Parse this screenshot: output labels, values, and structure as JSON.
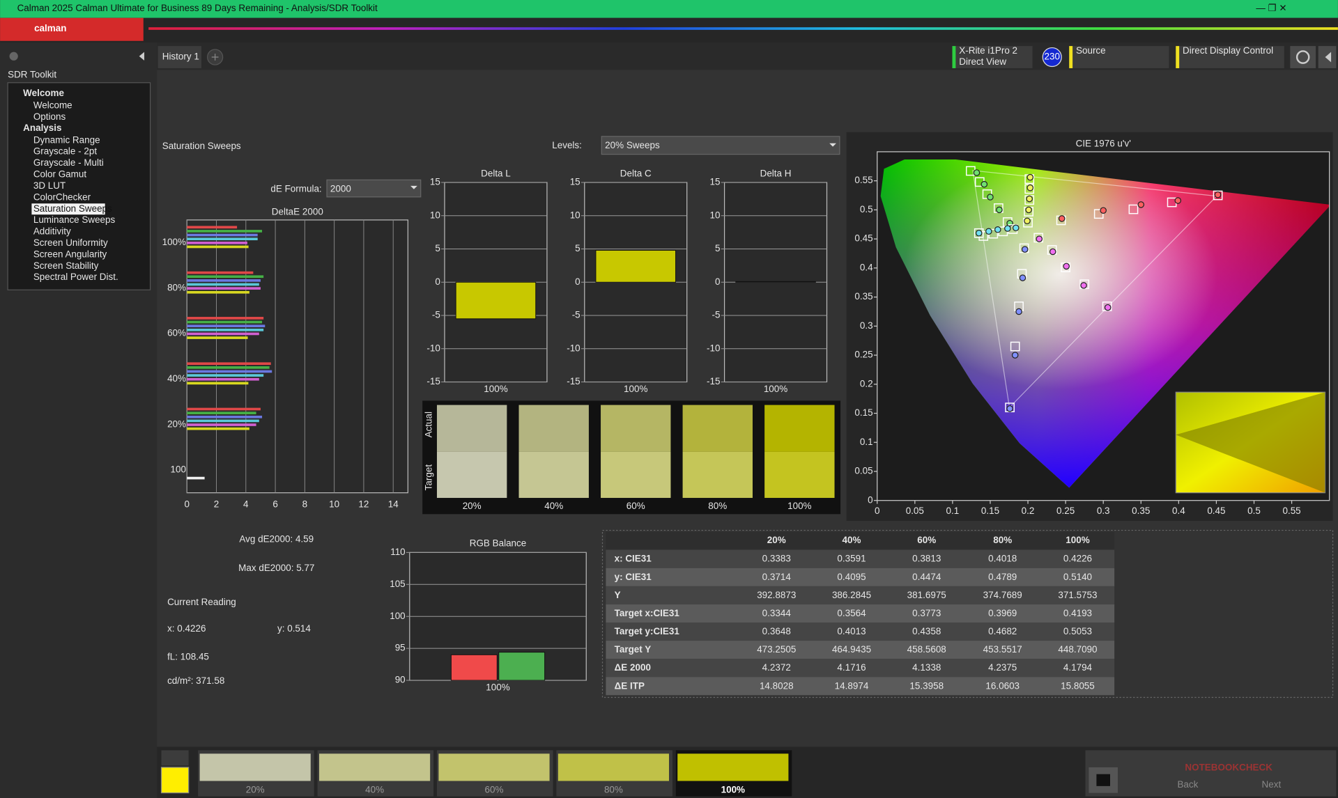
{
  "window": {
    "title": "Calman 2025 Calman Ultimate for Business 89 Days Remaining  - Analysis/SDR Toolkit",
    "logo": "calman"
  },
  "sidebar": {
    "title": "SDR Toolkit",
    "groups": [
      {
        "label": "Welcome",
        "items": [
          "Welcome",
          "Options"
        ]
      },
      {
        "label": "Analysis",
        "items": [
          "Dynamic Range",
          "Grayscale - 2pt",
          "Grayscale - Multi",
          "Color Gamut",
          "3D LUT",
          "ColorChecker",
          "Saturation Sweeps",
          "Luminance Sweeps",
          "Additivity",
          "Screen Uniformity",
          "Screen Angularity",
          "Screen Stability",
          "Spectral Power Dist."
        ],
        "selected": 6
      }
    ]
  },
  "tabs": [
    "History 1"
  ],
  "toolbar": {
    "meter": "X-Rite i1Pro 2",
    "meter_mode": "Direct View",
    "badge": "230",
    "source": "Source",
    "display": "Direct Display Control"
  },
  "panel": {
    "title": "Saturation Sweeps",
    "levels_label": "Levels:",
    "levels_value": "20% Sweeps",
    "formula_label": "dE Formula:",
    "formula_value": "2000"
  },
  "chart_data": [
    {
      "type": "hbar",
      "title": "DeltaE 2000",
      "categories": [
        "100%",
        "80%",
        "60%",
        "40%",
        "20%",
        "100"
      ],
      "xlim": [
        0,
        15
      ],
      "xticks": [
        0,
        2,
        4,
        6,
        8,
        10,
        12,
        14
      ],
      "grid": true,
      "series": [
        {
          "color": "#e04848",
          "values": [
            3.4,
            4.5,
            5.2,
            5.7,
            5.0,
            null
          ]
        },
        {
          "color": "#46b046",
          "values": [
            5.1,
            5.2,
            5.1,
            5.6,
            4.7,
            null
          ]
        },
        {
          "color": "#6a78e0",
          "values": [
            4.8,
            5.0,
            5.3,
            5.77,
            5.1,
            null
          ]
        },
        {
          "color": "#5ac8d8",
          "values": [
            4.8,
            4.9,
            5.2,
            5.2,
            4.9,
            null
          ]
        },
        {
          "color": "#d060d0",
          "values": [
            4.1,
            5.0,
            4.9,
            4.9,
            4.7,
            null
          ]
        },
        {
          "color": "#d8d820",
          "values": [
            4.18,
            4.24,
            4.13,
            4.17,
            4.24,
            null
          ]
        },
        {
          "color": "#f0f0f0",
          "values": [
            null,
            null,
            null,
            null,
            null,
            1.2
          ]
        }
      ]
    },
    {
      "type": "bar",
      "title": "Delta L",
      "categories": [
        "100%"
      ],
      "values": [
        -5.5
      ],
      "color": "#c8c800",
      "ylim": [
        -15,
        15
      ],
      "yticks": [
        -15,
        -10,
        -5,
        0,
        5,
        10,
        15
      ],
      "grid": true
    },
    {
      "type": "bar",
      "title": "Delta C",
      "categories": [
        "100%"
      ],
      "values": [
        4.8
      ],
      "color": "#c8c800",
      "ylim": [
        -15,
        15
      ],
      "yticks": [
        -15,
        -10,
        -5,
        0,
        5,
        10,
        15
      ],
      "grid": true
    },
    {
      "type": "bar",
      "title": "Delta H",
      "categories": [
        "100%"
      ],
      "values": [
        0.1
      ],
      "color": "#c8c800",
      "ylim": [
        -15,
        15
      ],
      "yticks": [
        -15,
        -10,
        -5,
        0,
        5,
        10,
        15
      ],
      "grid": true
    },
    {
      "type": "bar",
      "title": "RGB Balance",
      "categories": [
        "100%"
      ],
      "ylim": [
        90,
        110
      ],
      "yticks": [
        90,
        95,
        100,
        105,
        110
      ],
      "grid": true,
      "series": [
        {
          "color": "#f04a4a",
          "values": [
            94
          ]
        },
        {
          "color": "#4caf50",
          "values": [
            94.4
          ]
        }
      ]
    },
    {
      "type": "scatter",
      "title": "CIE 1976 u'v'",
      "xlim": [
        0,
        0.6
      ],
      "ylim": [
        0,
        0.6
      ],
      "xticks": [
        0,
        0.05,
        0.1,
        0.15,
        0.2,
        0.25,
        0.3,
        0.35,
        0.4,
        0.45,
        0.5,
        0.55
      ],
      "yticks": [
        0,
        0.05,
        0.1,
        0.15,
        0.2,
        0.25,
        0.3,
        0.35,
        0.4,
        0.45,
        0.5,
        0.55
      ],
      "series": [
        {
          "marker": "square",
          "color": "#ffffff",
          "x": [
            0.244,
            0.294,
            0.34,
            0.391,
            0.452
          ],
          "y": [
            0.482,
            0.493,
            0.501,
            0.513,
            0.525
          ]
        },
        {
          "marker": "circle",
          "color": "#ff6060",
          "x": [
            0.245,
            0.3,
            0.35,
            0.399,
            0.452
          ],
          "y": [
            0.485,
            0.499,
            0.509,
            0.516,
            0.526
          ]
        },
        {
          "marker": "square",
          "color": "#ffffff",
          "x": [
            0.173,
            0.161,
            0.146,
            0.136,
            0.124
          ],
          "y": [
            0.479,
            0.503,
            0.527,
            0.548,
            0.567
          ]
        },
        {
          "marker": "circle",
          "color": "#70e070",
          "x": [
            0.176,
            0.162,
            0.15,
            0.142,
            0.132
          ],
          "y": [
            0.477,
            0.5,
            0.522,
            0.544,
            0.564
          ]
        },
        {
          "marker": "square",
          "color": "#ffffff",
          "x": [
            0.195,
            0.192,
            0.188,
            0.183,
            0.176
          ],
          "y": [
            0.434,
            0.39,
            0.334,
            0.265,
            0.16
          ]
        },
        {
          "marker": "circle",
          "color": "#8090ff",
          "x": [
            0.196,
            0.193,
            0.188,
            0.183,
            0.176
          ],
          "y": [
            0.432,
            0.383,
            0.325,
            0.25,
            0.158
          ]
        },
        {
          "marker": "square",
          "color": "#ffffff",
          "x": [
            0.18,
            0.167,
            0.154,
            0.141,
            0.135
          ],
          "y": [
            0.467,
            0.463,
            0.459,
            0.455,
            0.46
          ]
        },
        {
          "marker": "circle",
          "color": "#70e0f0",
          "x": [
            0.184,
            0.173,
            0.16,
            0.148,
            0.135
          ],
          "y": [
            0.469,
            0.468,
            0.466,
            0.463,
            0.46
          ]
        },
        {
          "marker": "square",
          "color": "#ffffff",
          "x": [
            0.214,
            0.232,
            0.25,
            0.275,
            0.305
          ],
          "y": [
            0.452,
            0.431,
            0.401,
            0.372,
            0.334
          ]
        },
        {
          "marker": "circle",
          "color": "#f070f0",
          "x": [
            0.215,
            0.233,
            0.251,
            0.274,
            0.306
          ],
          "y": [
            0.45,
            0.428,
            0.403,
            0.37,
            0.332
          ]
        },
        {
          "marker": "square",
          "color": "#ffffff",
          "x": [
            0.2,
            0.201,
            0.202,
            0.202,
            0.202
          ],
          "y": [
            0.478,
            0.497,
            0.517,
            0.536,
            0.553
          ]
        },
        {
          "marker": "circle",
          "color": "#f0f060",
          "x": [
            0.199,
            0.201,
            0.202,
            0.203,
            0.203
          ],
          "y": [
            0.481,
            0.5,
            0.519,
            0.538,
            0.556
          ]
        }
      ]
    }
  ],
  "swatches": {
    "actual_label": "Actual",
    "target_label": "Target",
    "levels": [
      {
        "label": "20%",
        "actual": "#b6b799",
        "target": "#c6c7ae"
      },
      {
        "label": "40%",
        "actual": "#b3b480",
        "target": "#c5c693"
      },
      {
        "label": "60%",
        "actual": "#b5b664",
        "target": "#c7c87a"
      },
      {
        "label": "80%",
        "actual": "#b3b33c",
        "target": "#c5c658"
      },
      {
        "label": "100%",
        "actual": "#b4b400",
        "target": "#c4c420"
      }
    ]
  },
  "stats": {
    "avg": "Avg dE2000: 4.59",
    "max": "Max dE2000: 5.77",
    "reading_title": "Current Reading",
    "x": "x: 0.4226",
    "y": "y: 0.514",
    "fl": "fL: 108.45",
    "cdm2": "cd/m²: 371.58"
  },
  "table": {
    "columns": [
      "20%",
      "40%",
      "60%",
      "80%",
      "100%"
    ],
    "rows": [
      {
        "label": "x: CIE31",
        "cells": [
          "0.3383",
          "0.3591",
          "0.3813",
          "0.4018",
          "0.4226"
        ]
      },
      {
        "label": "y: CIE31",
        "cells": [
          "0.3714",
          "0.4095",
          "0.4474",
          "0.4789",
          "0.5140"
        ]
      },
      {
        "label": "Y",
        "cells": [
          "392.8873",
          "386.2845",
          "381.6975",
          "374.7689",
          "371.5753"
        ]
      },
      {
        "label": "Target x:CIE31",
        "cells": [
          "0.3344",
          "0.3564",
          "0.3773",
          "0.3969",
          "0.4193"
        ]
      },
      {
        "label": "Target y:CIE31",
        "cells": [
          "0.3648",
          "0.4013",
          "0.4358",
          "0.4682",
          "0.5053"
        ]
      },
      {
        "label": "Target Y",
        "cells": [
          "473.2505",
          "464.9435",
          "458.5608",
          "453.5517",
          "448.7090"
        ]
      },
      {
        "label": "ΔE 2000",
        "cells": [
          "4.2372",
          "4.1716",
          "4.1338",
          "4.2375",
          "4.1794"
        ]
      },
      {
        "label": "ΔE ITP",
        "cells": [
          "14.8028",
          "14.8974",
          "15.3958",
          "16.0603",
          "15.8055"
        ]
      }
    ]
  },
  "footer": {
    "levels": [
      {
        "label": "20%",
        "color": "#c4c5a9"
      },
      {
        "label": "40%",
        "color": "#c3c48c"
      },
      {
        "label": "60%",
        "color": "#c2c36c"
      },
      {
        "label": "80%",
        "color": "#c0c148"
      },
      {
        "label": "100%",
        "color": "#c0c000"
      }
    ],
    "back": "Back",
    "next": "Next"
  },
  "watermark": "NOTEBOOKCHECK"
}
